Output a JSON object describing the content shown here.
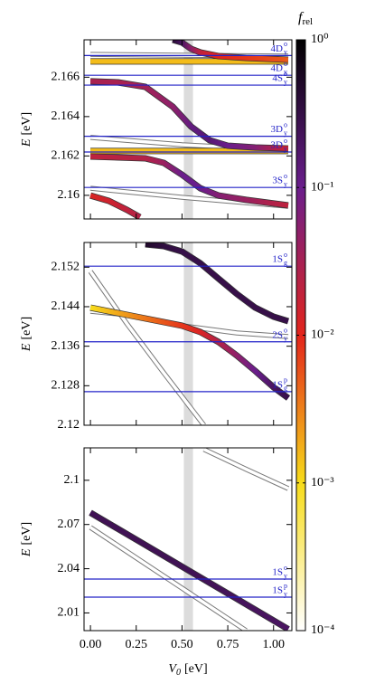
{
  "chart_data": [
    {
      "type": "line",
      "ylabel": {
        "var": "E",
        "unit": "[eV]"
      },
      "ylim": [
        2.1588,
        2.1679
      ],
      "yticks": [
        2.16,
        2.162,
        2.164,
        2.166
      ],
      "levels": [
        {
          "value": 2.1671,
          "label": {
            "text": "4D",
            "sub": "y",
            "sup": "o"
          }
        },
        {
          "value": 2.1661,
          "label": {
            "text": "4D",
            "sub": "y",
            "sup": "o"
          }
        },
        {
          "value": 2.1656,
          "label": {
            "text": "4S",
            "sub": "y",
            "sup": "o"
          }
        },
        {
          "value": 2.163,
          "label": {
            "text": "3D",
            "sub": "y",
            "sup": "o"
          }
        },
        {
          "value": 2.1622,
          "label": {
            "text": "3D",
            "sub": "y",
            "sup": "o"
          }
        },
        {
          "value": 2.1604,
          "label": {
            "text": "3S",
            "sub": "y",
            "sup": "o"
          }
        }
      ],
      "series": [
        {
          "x": [
            0,
            1.08
          ],
          "values": [
            2.16716,
            2.16707
          ]
        },
        {
          "x": [
            0,
            0.5,
            1.08
          ],
          "values": [
            2.16294,
            2.16257,
            2.16229
          ]
        },
        {
          "x": [
            0,
            0.5,
            1.08
          ],
          "values": [
            2.16036,
            2.1599,
            2.15944
          ]
        },
        {
          "x": [
            0,
            0.54,
            1.08
          ],
          "values": [
            2.1668,
            2.1668,
            2.1668
          ],
          "f": [
            0.0015,
            0.0015,
            0.0015
          ]
        },
        {
          "x": [
            0,
            0.54,
            1.08
          ],
          "values": [
            2.16225,
            2.16225,
            2.16225
          ],
          "f": [
            0.0015,
            0.0015,
            0.0015
          ]
        },
        {
          "x": [
            0.45,
            0.5,
            0.55,
            0.6,
            0.7,
            0.85,
            1.08
          ],
          "values": [
            2.1679,
            2.16776,
            2.16744,
            2.16726,
            2.16707,
            2.16698,
            2.16689
          ],
          "f": [
            0.4,
            0.2,
            0.05,
            0.02,
            0.01,
            0.008,
            0.005
          ]
        },
        {
          "x": [
            0,
            0.15,
            0.3,
            0.45,
            0.55,
            0.65,
            0.75,
            0.9,
            1.08
          ],
          "values": [
            2.16579,
            2.16574,
            2.16551,
            2.1645,
            2.16349,
            2.1628,
            2.16252,
            2.16243,
            2.16238
          ],
          "f": [
            0.03,
            0.03,
            0.035,
            0.05,
            0.12,
            0.15,
            0.1,
            0.06,
            0.015
          ]
        },
        {
          "x": [
            0,
            0.3,
            0.4,
            0.5,
            0.6,
            0.7,
            0.85,
            1.08
          ],
          "values": [
            2.16197,
            2.16188,
            2.16165,
            2.16105,
            2.16036,
            2.15999,
            2.15977,
            2.15949
          ],
          "f": [
            0.02,
            0.025,
            0.04,
            0.1,
            0.1,
            0.06,
            0.04,
            0.02
          ]
        },
        {
          "x": [
            0,
            0.1,
            0.2,
            0.27
          ],
          "values": [
            2.15999,
            2.15972,
            2.15926,
            2.15889
          ],
          "f": [
            0.012,
            0.015,
            0.02,
            0.025
          ]
        }
      ]
    },
    {
      "type": "line",
      "ylabel": {
        "var": "E",
        "unit": "[eV]"
      },
      "ylim": [
        2.12,
        2.157
      ],
      "yticks": [
        2.12,
        2.128,
        2.136,
        2.144,
        2.152
      ],
      "levels": [
        {
          "value": 2.1522,
          "label": {
            "text": "1S",
            "sub": "g",
            "sup": "o"
          }
        },
        {
          "value": 2.1369,
          "label": {
            "text": "2S",
            "sub": "y",
            "sup": "o"
          }
        },
        {
          "value": 2.1268,
          "label": {
            "text": "1S",
            "sub": "g",
            "sup": "p"
          }
        }
      ],
      "series": [
        {
          "x": [
            0,
            0.2,
            0.5,
            0.8,
            1.08
          ],
          "values": [
            2.14308,
            2.14235,
            2.14015,
            2.13868,
            2.13795
          ]
        },
        {
          "x": [
            0,
            0.2,
            0.4,
            0.62
          ],
          "values": [
            2.15114,
            2.14051,
            2.13062,
            2.12
          ]
        },
        {
          "x": [
            0.3,
            0.4,
            0.5,
            0.6,
            0.7,
            0.8,
            0.9,
            1.0,
            1.08
          ],
          "values": [
            2.15663,
            2.15627,
            2.15517,
            2.15279,
            2.14967,
            2.14656,
            2.14381,
            2.14198,
            2.14106
          ],
          "f": [
            0.5,
            0.35,
            0.3,
            0.3,
            0.3,
            0.3,
            0.3,
            0.3,
            0.3
          ]
        },
        {
          "x": [
            0,
            0.25,
            0.5,
            0.6,
            0.7,
            0.8,
            0.9,
            1.0,
            1.08
          ],
          "values": [
            2.14381,
            2.14198,
            2.14015,
            2.13887,
            2.13685,
            2.1341,
            2.13099,
            2.12769,
            2.1255
          ],
          "f": [
            0.001,
            0.003,
            0.008,
            0.012,
            0.025,
            0.05,
            0.1,
            0.2,
            0.3
          ]
        }
      ]
    },
    {
      "type": "line",
      "ylabel": {
        "var": "E",
        "unit": "[eV]"
      },
      "ylim": [
        1.998,
        2.122
      ],
      "yticks": [
        2.01,
        2.04,
        2.07,
        2.1
      ],
      "levels": [
        {
          "value": 2.033,
          "label": {
            "text": "1S",
            "sub": "y",
            "sup": "o"
          }
        },
        {
          "value": 2.0207,
          "label": {
            "text": "1S",
            "sub": "y",
            "sup": "p"
          }
        }
      ],
      "series": [
        {
          "x": [
            0.62,
            0.85,
            1.08
          ],
          "values": [
            2.121,
            2.1075,
            2.0944
          ]
        },
        {
          "x": [
            0,
            0.425,
            0.85
          ],
          "values": [
            2.068,
            2.033,
            1.998
          ]
        },
        {
          "x": [
            0,
            0.27,
            0.54,
            0.81,
            1.08
          ],
          "values": [
            2.078,
            2.0583,
            2.0385,
            2.0188,
            1.999
          ],
          "f": [
            0.25,
            0.25,
            0.25,
            0.22,
            0.2
          ]
        }
      ]
    }
  ],
  "x_axis": {
    "label": {
      "var": "V",
      "sub": "0",
      "unit": "[eV]"
    },
    "lim": [
      -0.035,
      1.1
    ],
    "ticks": [
      {
        "value": 0,
        "label": "0.00"
      },
      {
        "value": 0.25,
        "label": "0.25"
      },
      {
        "value": 0.5,
        "label": "0.50"
      },
      {
        "value": 0.75,
        "label": "0.75"
      },
      {
        "value": 1,
        "label": "1.00"
      }
    ],
    "band": [
      0.51,
      0.56
    ],
    "band_color": "#dcdcdc"
  },
  "level_color": "#2323c8",
  "colorbar": {
    "label": {
      "var": "f",
      "sub": "rel"
    },
    "log": true,
    "lim": [
      0.0001,
      1
    ],
    "ticks": [
      {
        "value": 0.0001,
        "label": "10⁻⁴"
      },
      {
        "value": 0.001,
        "label": "10⁻³"
      },
      {
        "value": 0.01,
        "label": "10⁻²"
      },
      {
        "value": 0.1,
        "label": "10⁻¹"
      },
      {
        "value": 1,
        "label": "10⁰"
      }
    ],
    "colors": [
      "#ffffff",
      "#f7dc1a",
      "#e3241b",
      "#6a1e8c",
      "#000000"
    ]
  }
}
